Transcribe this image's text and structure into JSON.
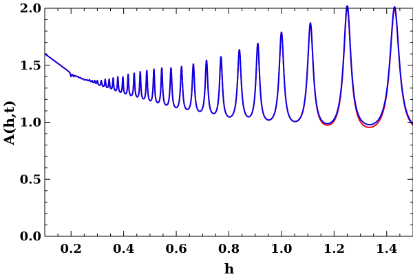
{
  "chart_data": {
    "type": "line",
    "xlabel": "h",
    "ylabel": "A(h,t)",
    "xlim": [
      0.1,
      1.5
    ],
    "ylim": [
      0.0,
      2.0
    ],
    "x_ticks": [
      "0.2",
      "0.4",
      "0.6",
      "0.8",
      "1.0",
      "1.2",
      "1.4"
    ],
    "y_ticks": [
      "0.0",
      "0.5",
      "1.0",
      "1.5",
      "2.0"
    ],
    "peaks_h": [
      0.2,
      0.21,
      0.22,
      0.23,
      0.24,
      0.25,
      0.26,
      0.27,
      0.28,
      0.29,
      0.3,
      0.315,
      0.33,
      0.345,
      0.36,
      0.378,
      0.397,
      0.417,
      0.44,
      0.463,
      0.488,
      0.515,
      0.545,
      0.58,
      0.62,
      0.665,
      0.715,
      0.77,
      0.84,
      0.91,
      1.0,
      1.11,
      1.25,
      1.43
    ],
    "peaks_A": [
      1.4,
      1.4,
      1.4,
      1.39,
      1.38,
      1.37,
      1.37,
      1.37,
      1.36,
      1.36,
      1.36,
      1.36,
      1.37,
      1.37,
      1.38,
      1.39,
      1.39,
      1.41,
      1.42,
      1.43,
      1.44,
      1.45,
      1.46,
      1.46,
      1.47,
      1.49,
      1.52,
      1.55,
      1.61,
      1.66,
      1.76,
      1.84,
      2.0,
      2.0
    ],
    "baseline": [
      {
        "h": 0.1,
        "A": 1.6
      },
      {
        "h": 0.2,
        "A": 1.43
      },
      {
        "h": 0.3,
        "A": 1.32
      },
      {
        "h": 0.4,
        "A": 1.23
      },
      {
        "h": 0.5,
        "A": 1.15
      },
      {
        "h": 0.6,
        "A": 1.08
      },
      {
        "h": 0.7,
        "A": 1.03
      },
      {
        "h": 0.8,
        "A": 0.98
      },
      {
        "h": 0.9,
        "A": 0.95
      },
      {
        "h": 1.0,
        "A": 0.92
      },
      {
        "h": 1.1,
        "A": 0.9
      },
      {
        "h": 1.2,
        "A": 0.88
      },
      {
        "h": 1.3,
        "A": 0.88
      },
      {
        "h": 1.4,
        "A": 0.87
      },
      {
        "h": 1.5,
        "A": 0.88
      }
    ],
    "series": [
      {
        "color": "#e8001c",
        "offset": [
          {
            "h": 1.05,
            "d": 0.0
          },
          {
            "h": 1.1,
            "d": -0.01
          },
          {
            "h": 1.2,
            "d": -0.015
          },
          {
            "h": 1.3,
            "d": -0.025
          },
          {
            "h": 1.4,
            "d": -0.02
          },
          {
            "h": 1.5,
            "d": -0.01
          }
        ]
      },
      {
        "color": "#0b00e8",
        "offset": [
          {
            "h": 0.1,
            "d": 0.0
          },
          {
            "h": 1.5,
            "d": 0.0
          }
        ]
      }
    ],
    "grid": false
  }
}
